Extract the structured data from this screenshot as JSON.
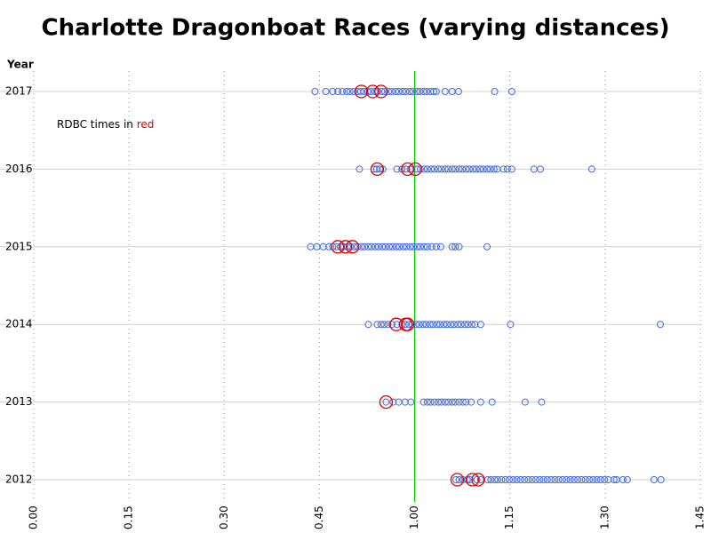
{
  "chart_data": {
    "type": "strip",
    "title": "Charlotte Dragonboat Races (varying distances)",
    "y_label": "Year",
    "annotation": {
      "text": "RDBC times in ",
      "highlight": "red"
    },
    "categories": [
      "2017",
      "2016",
      "2015",
      "2014",
      "2013",
      "2012"
    ],
    "times": [
      [
        44.3,
        46.0,
        47.1,
        47.9,
        48.6,
        49.3,
        49.8,
        50.4,
        51.0,
        51.5,
        52.0,
        52.6,
        53.1,
        53.7,
        54.2,
        54.8,
        55.3,
        55.9,
        56.4,
        57.0,
        57.5,
        58.1,
        58.6,
        59.2,
        59.7,
        60.3,
        60.8,
        61.4,
        61.9,
        62.5,
        63.0,
        63.4,
        64.8,
        65.9,
        66.9,
        72.6,
        75.3
      ],
      [
        51.3,
        53.6,
        54.0,
        54.5,
        55.0,
        57.2,
        58.0,
        58.6,
        59.3,
        60.4,
        60.9,
        61.5,
        62.0,
        62.6,
        63.1,
        63.7,
        64.2,
        64.8,
        65.3,
        65.9,
        66.4,
        67.0,
        67.5,
        68.1,
        68.6,
        69.2,
        69.7,
        70.3,
        70.8,
        71.4,
        71.9,
        72.5,
        73.0,
        74.0,
        74.6,
        75.3,
        78.8,
        79.8,
        87.9
      ],
      [
        43.6,
        44.6,
        45.6,
        46.5,
        47.1,
        47.7,
        48.3,
        48.8,
        49.4,
        49.9,
        50.5,
        51.0,
        51.6,
        52.1,
        52.7,
        53.2,
        53.8,
        54.3,
        54.9,
        55.4,
        56.0,
        56.5,
        57.1,
        57.6,
        58.2,
        58.7,
        59.3,
        59.8,
        60.4,
        60.9,
        61.5,
        62.0,
        62.7,
        63.4,
        64.1,
        65.9,
        66.4,
        67.0,
        71.4
      ],
      [
        52.7,
        54.1,
        54.7,
        55.2,
        55.8,
        56.4,
        57.2,
        58.0,
        58.5,
        59.1,
        59.6,
        60.2,
        60.7,
        61.3,
        61.8,
        62.4,
        62.9,
        63.5,
        64.0,
        64.6,
        65.1,
        65.7,
        66.2,
        66.8,
        67.3,
        67.9,
        68.4,
        69.0,
        69.5,
        70.4,
        75.1,
        98.7
      ],
      [
        55.5,
        56.6,
        57.5,
        58.5,
        59.4,
        61.4,
        62.0,
        62.5,
        63.1,
        63.7,
        64.2,
        64.8,
        65.3,
        65.9,
        66.4,
        67.0,
        67.6,
        68.1,
        68.9,
        70.4,
        72.2,
        77.4,
        80.0
      ],
      [
        66.5,
        67.0,
        67.6,
        68.3,
        68.7,
        69.8,
        70.4,
        71.5,
        72.0,
        72.6,
        73.1,
        73.7,
        74.3,
        74.9,
        75.5,
        76.1,
        76.7,
        77.3,
        77.9,
        78.5,
        79.1,
        79.7,
        80.3,
        80.9,
        81.5,
        82.1,
        82.7,
        83.3,
        83.9,
        84.5,
        85.1,
        85.7,
        86.3,
        86.9,
        87.5,
        88.1,
        88.7,
        89.3,
        89.9,
        90.5,
        91.4,
        91.8,
        92.8,
        93.5,
        97.7,
        98.8
      ]
    ],
    "rdbc_times": [
      [
        51.6,
        53.4,
        54.7
      ],
      [
        54.1,
        58.9,
        60.1
      ],
      [
        47.9,
        49.1,
        50.2
      ],
      [
        57.1,
        58.6,
        58.9
      ],
      [
        55.5
      ],
      [
        66.7,
        69.1,
        70.0
      ]
    ],
    "color": "#4169e1",
    "rdbc_color": "#e00000",
    "reference_x": 60,
    "reference_color": "#00cc00",
    "xlim": [
      0,
      105
    ],
    "xticks": [
      {
        "value": 0,
        "label": "0.00"
      },
      {
        "value": 15,
        "label": "0.15"
      },
      {
        "value": 30,
        "label": "0.30"
      },
      {
        "value": 45,
        "label": "0.45"
      },
      {
        "value": 60,
        "label": "1.00"
      },
      {
        "value": 75,
        "label": "1.15"
      },
      {
        "value": 90,
        "label": "1.30"
      },
      {
        "value": 105,
        "label": "1.45"
      }
    ],
    "grid": true
  }
}
